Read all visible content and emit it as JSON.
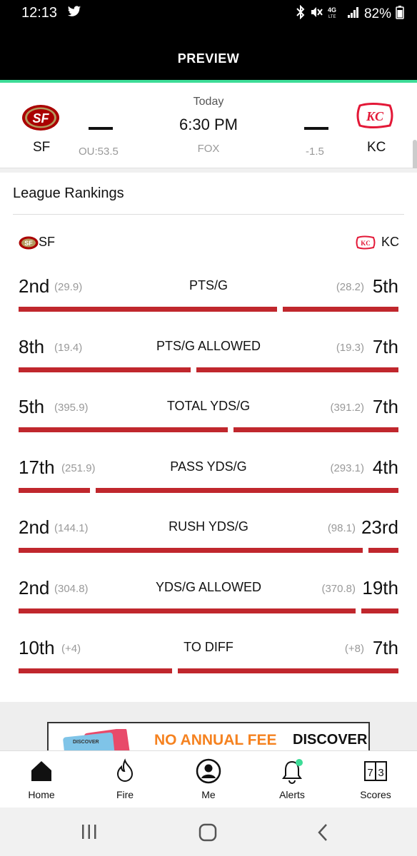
{
  "status_bar": {
    "time": "12:13",
    "battery": "82%"
  },
  "header": {
    "title": "PREVIEW"
  },
  "game": {
    "away_team": "SF",
    "home_team": "KC",
    "day": "Today",
    "time": "6:30 PM",
    "network": "FOX",
    "over_under": "OU:53.5",
    "spread": "-1.5",
    "away_score": "—",
    "home_score": "—"
  },
  "rankings": {
    "title": "League Rankings",
    "left_team": "SF",
    "right_team": "KC",
    "rows": [
      {
        "stat": "PTS/G",
        "left_rank": "2nd",
        "left_val": "(29.9)",
        "right_val": "(28.2)",
        "right_rank": "5th",
        "left_share": 0.69
      },
      {
        "stat": "PTS/G ALLOWED",
        "left_rank": "8th",
        "left_val": "(19.4)",
        "right_val": "(19.3)",
        "right_rank": "7th",
        "left_share": 0.46
      },
      {
        "stat": "TOTAL YDS/G",
        "left_rank": "5th",
        "left_val": "(395.9)",
        "right_val": "(391.2)",
        "right_rank": "7th",
        "left_share": 0.56
      },
      {
        "stat": "PASS YDS/G",
        "left_rank": "17th",
        "left_val": "(251.9)",
        "right_val": "(293.1)",
        "right_rank": "4th",
        "left_share": 0.19
      },
      {
        "stat": "RUSH YDS/G",
        "left_rank": "2nd",
        "left_val": "(144.1)",
        "right_val": "(98.1)",
        "right_rank": "23rd",
        "left_share": 0.92
      },
      {
        "stat": "YDS/G ALLOWED",
        "left_rank": "2nd",
        "left_val": "(304.8)",
        "right_val": "(370.8)",
        "right_rank": "19th",
        "left_share": 0.9
      },
      {
        "stat": "TO DIFF",
        "left_rank": "10th",
        "left_val": "(+4)",
        "right_val": "(+8)",
        "right_rank": "7th",
        "left_share": 0.41
      }
    ]
  },
  "ad": {
    "headline": "NO ANNUAL FEE",
    "brand": "DISCOVER"
  },
  "tabs": [
    {
      "label": "Home",
      "icon": "home-icon"
    },
    {
      "label": "Fire",
      "icon": "fire-icon"
    },
    {
      "label": "Me",
      "icon": "person-icon"
    },
    {
      "label": "Alerts",
      "icon": "bell-icon"
    },
    {
      "label": "Scores",
      "icon": "scores-icon"
    }
  ],
  "colors": {
    "accent": "#3ddc97",
    "bar": "#c0272d",
    "sf_red": "#aa0000",
    "kc_red": "#e31837"
  }
}
